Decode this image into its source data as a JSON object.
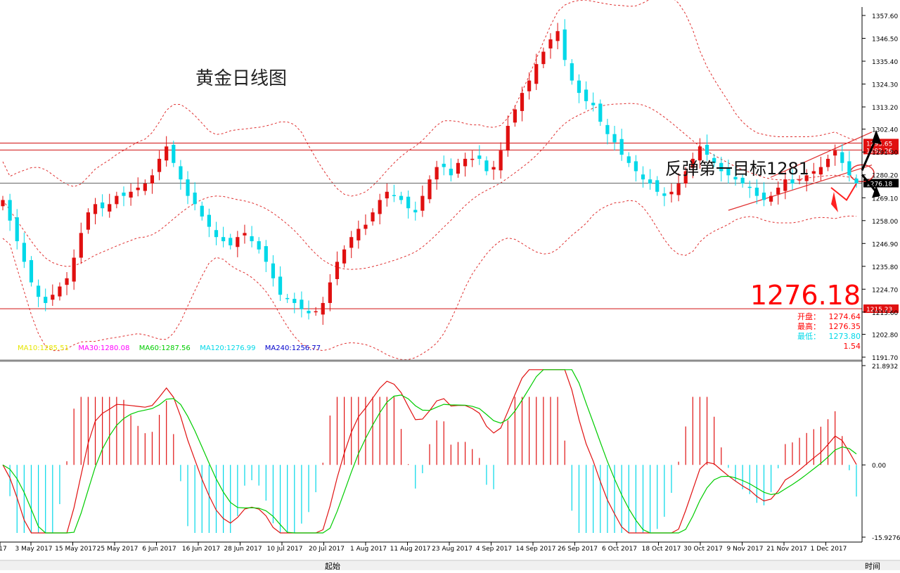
{
  "chart_data": [
    {
      "type": "candlestick",
      "title": "黄金日线图",
      "annotation": "反弹第一目标1281",
      "last_price": "1276.18",
      "quote": [
        {
          "label": "开盘：",
          "value": "1274.64",
          "color": "#ff0000"
        },
        {
          "label": "最高：",
          "value": "1276.35",
          "color": "#ff0000"
        },
        {
          "label": "最低：",
          "value": "1273.80",
          "color": "#00d8e8"
        },
        {
          "label": "",
          "value": "1.54",
          "color": "#ff0000"
        }
      ],
      "ma_legend": [
        {
          "text": "MA10:1285.51",
          "color": "#e6e600"
        },
        {
          "text": "MA30:1280.08",
          "color": "#ff00ff"
        },
        {
          "text": "MA60:1287.56",
          "color": "#00cc00"
        },
        {
          "text": "MA120:1276.99",
          "color": "#00d8e8"
        },
        {
          "text": "MA240:1256.77",
          "color": "#0000cc"
        }
      ],
      "y_ticks": [
        "1357.60",
        "1346.50",
        "1335.40",
        "1324.30",
        "1313.20",
        "1302.40",
        "1291.30",
        "1280.20",
        "1269.10",
        "1258.00",
        "1246.90",
        "1235.80",
        "1224.70",
        "1213.60",
        "1202.80",
        "1191.70"
      ],
      "ylim": [
        1191.7,
        1357.6
      ],
      "levels": [
        {
          "value": 1295.65,
          "label": "1295.65"
        },
        {
          "value": 1292.26,
          "label": "1292.26"
        },
        {
          "value": 1276.18,
          "label": "1276.18"
        },
        {
          "value": 1215.23,
          "label": "1215.23"
        }
      ],
      "x_labels": [
        "17",
        "3 May 2017",
        "15 May 2017",
        "25 May 2017",
        "6 Jun 2017",
        "16 Jun 2017",
        "28 Jun 2017",
        "10 Jul 2017",
        "20 Jul 2017",
        "1 Aug 2017",
        "11 Aug 2017",
        "23 Aug 2017",
        "4 Sep 2017",
        "14 Sep 2017",
        "26 Sep 2017",
        "6 Oct 2017",
        "18 Oct 2017",
        "30 Oct 2017",
        "9 Nov 2017",
        "21 Nov 2017",
        "1 Dec 2017"
      ],
      "close_series": [
        1268,
        1258,
        1248,
        1238,
        1228,
        1221,
        1218,
        1222,
        1226,
        1230,
        1240,
        1252,
        1262,
        1266,
        1264,
        1266,
        1270,
        1270,
        1272,
        1274,
        1276,
        1280,
        1288,
        1294,
        1286,
        1278,
        1270,
        1266,
        1260,
        1255,
        1250,
        1248,
        1246,
        1250,
        1252,
        1248,
        1244,
        1238,
        1230,
        1222,
        1220,
        1218,
        1215,
        1213,
        1214,
        1218,
        1228,
        1238,
        1244,
        1250,
        1254,
        1256,
        1262,
        1268,
        1272,
        1270,
        1268,
        1264,
        1262,
        1270,
        1278,
        1284,
        1284,
        1280,
        1286,
        1288,
        1288,
        1288,
        1282,
        1284,
        1292,
        1304,
        1312,
        1320,
        1326,
        1334,
        1340,
        1346,
        1350,
        1336,
        1326,
        1320,
        1316,
        1314,
        1306,
        1300,
        1296,
        1290,
        1286,
        1282,
        1278,
        1276,
        1272,
        1270,
        1272,
        1276,
        1282,
        1288,
        1294,
        1290,
        1286,
        1282,
        1280,
        1278,
        1276,
        1274,
        1270,
        1268,
        1270,
        1274,
        1278,
        1276,
        1278,
        1280,
        1282,
        1284,
        1288,
        1292,
        1286,
        1280,
        1276
      ]
    },
    {
      "type": "macd",
      "y_ticks": [
        "21.8932",
        "0.00",
        "-15.9276"
      ],
      "ylim": [
        -15.9276,
        21.8932
      ]
    }
  ],
  "footer": {
    "left": "起始",
    "right": "时间"
  }
}
